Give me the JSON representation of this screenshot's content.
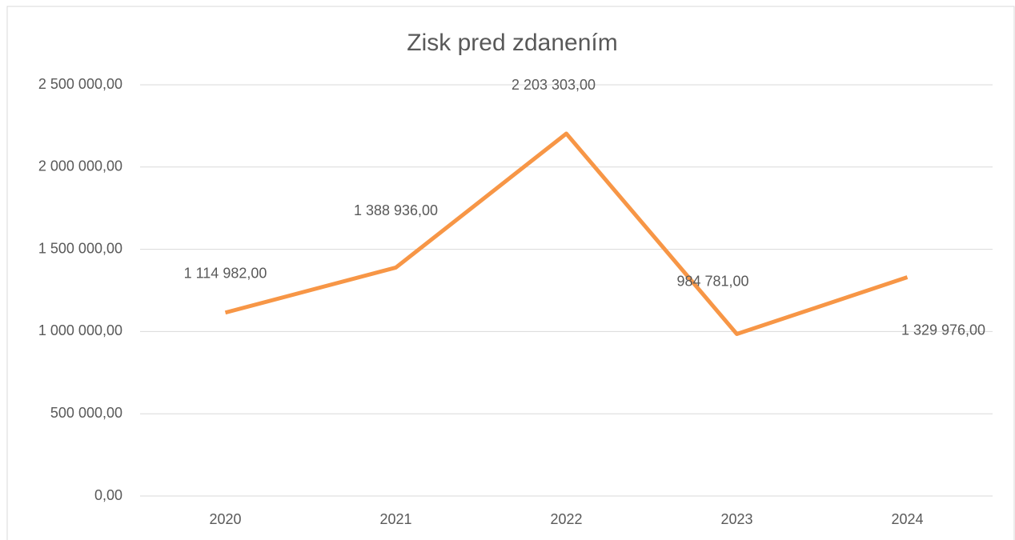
{
  "chart_data": {
    "type": "line",
    "title": "Zisk pred zdanením",
    "categories": [
      "2020",
      "2021",
      "2022",
      "2023",
      "2024"
    ],
    "series": [
      {
        "name": "Zisk pred zdanením",
        "color": "#f79646",
        "values": [
          1114982,
          1388936,
          2203303,
          984781,
          1329976
        ],
        "value_labels": [
          "1 114 982,00",
          "1 388 936,00",
          "2 203 303,00",
          "984 781,00",
          "1 329 976,00"
        ]
      }
    ],
    "ylim": [
      0,
      2500000
    ],
    "yticks": [
      {
        "value": 0,
        "label": "0,00"
      },
      {
        "value": 500000,
        "label": "500 000,00"
      },
      {
        "value": 1000000,
        "label": "1 000 000,00"
      },
      {
        "value": 1500000,
        "label": "1 500 000,00"
      },
      {
        "value": 2000000,
        "label": "2 000 000,00"
      },
      {
        "value": 2500000,
        "label": "2 500 000,00"
      }
    ],
    "grid": true
  }
}
